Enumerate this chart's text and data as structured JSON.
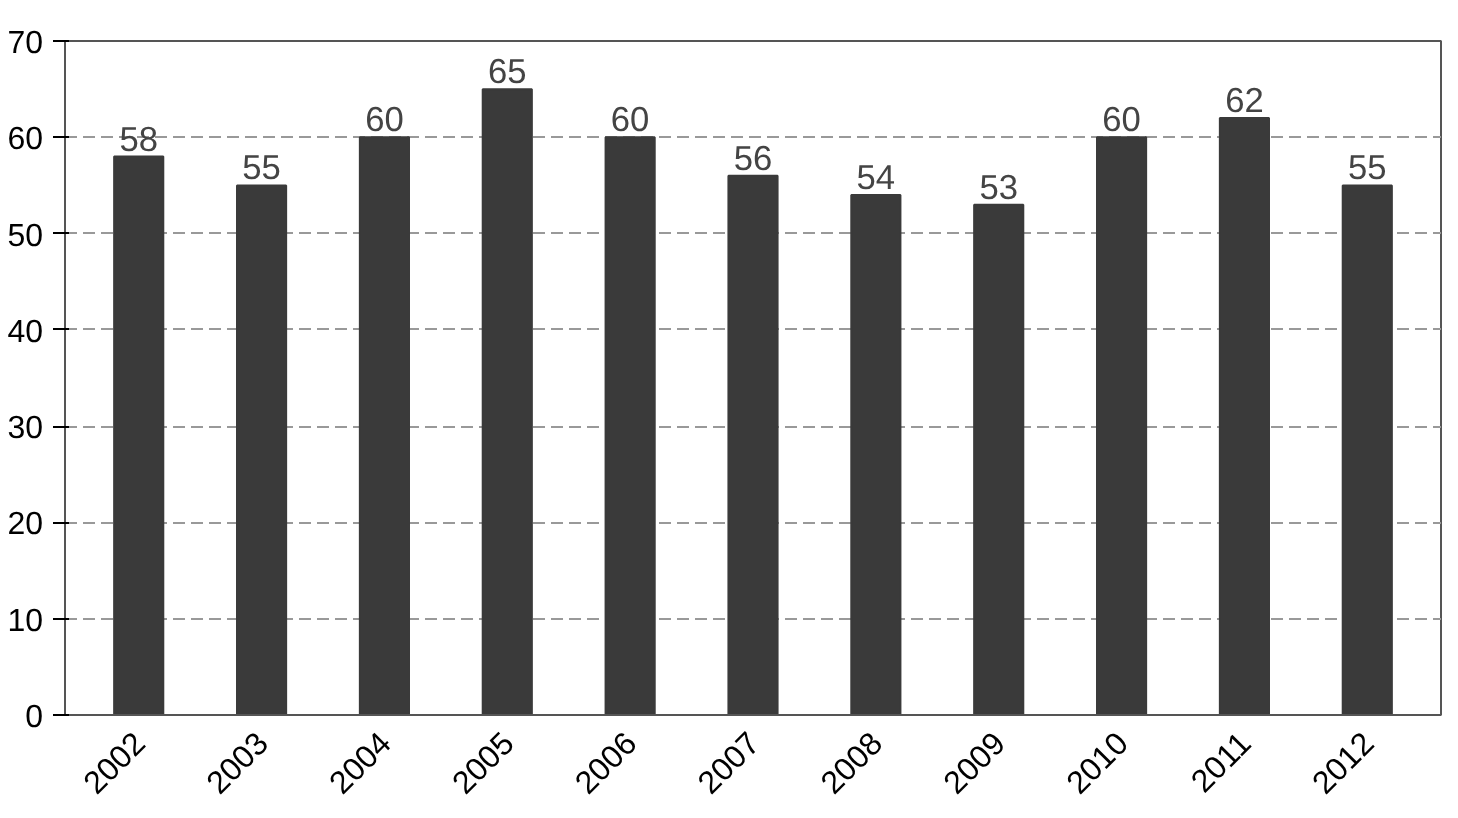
{
  "chart_data": {
    "type": "bar",
    "categories": [
      "2002",
      "2003",
      "2004",
      "2005",
      "2006",
      "2007",
      "2008",
      "2009",
      "2010",
      "2011",
      "2012"
    ],
    "values": [
      58,
      55,
      60,
      65,
      60,
      56,
      54,
      53,
      60,
      62,
      55
    ],
    "color": "#3a3a3a",
    "ylim": [
      0,
      70
    ],
    "yticks": [
      0,
      10,
      20,
      30,
      40,
      50,
      60,
      70
    ],
    "grid": "y",
    "data_labels": true
  }
}
